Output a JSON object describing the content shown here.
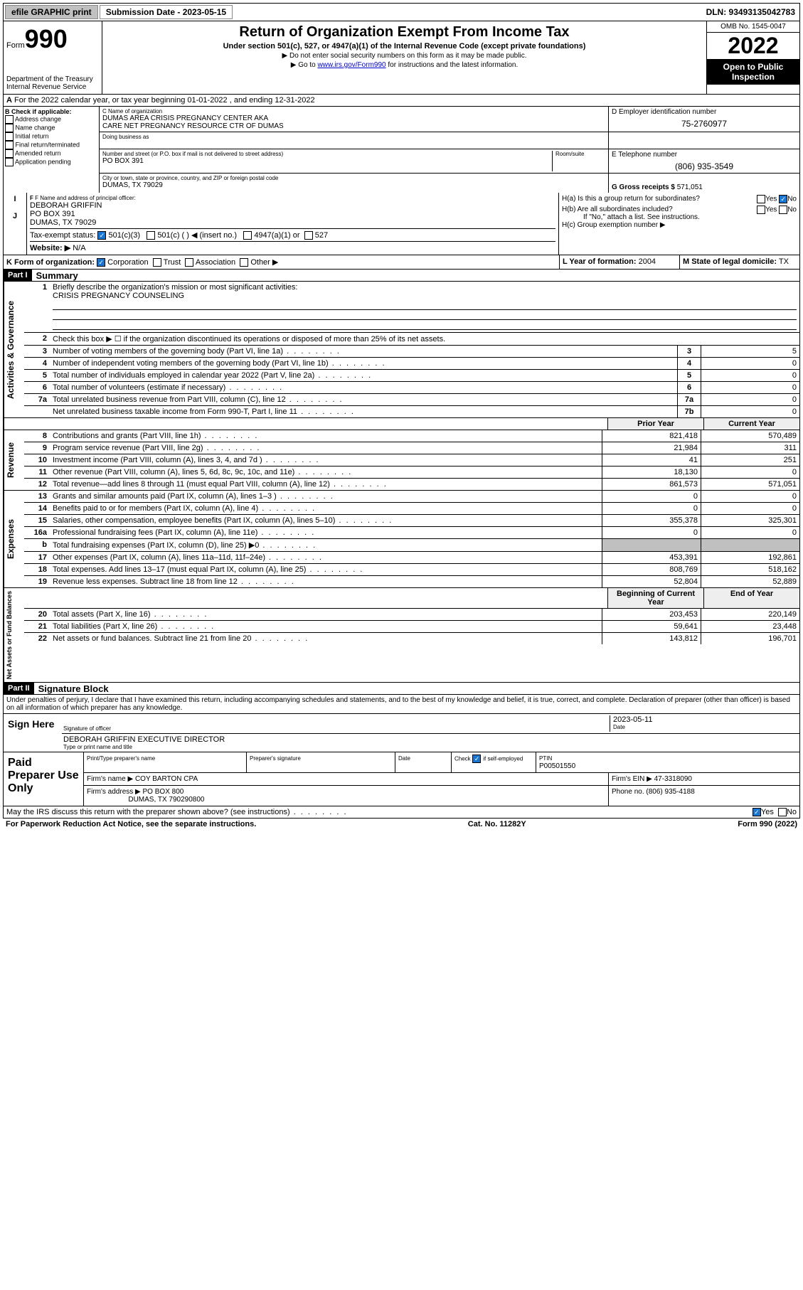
{
  "topbar": {
    "efile": "efile GRAPHIC print",
    "sub_label": "Submission Date - 2023-05-15",
    "dln": "DLN: 93493135042783"
  },
  "header": {
    "form_word": "Form",
    "form_num": "990",
    "dept": "Department of the Treasury",
    "irs": "Internal Revenue Service",
    "title": "Return of Organization Exempt From Income Tax",
    "sub": "Under section 501(c), 527, or 4947(a)(1) of the Internal Revenue Code (except private foundations)",
    "note1": "Do not enter social security numbers on this form as it may be made public.",
    "note2_pre": "Go to ",
    "note2_link": "www.irs.gov/Form990",
    "note2_post": " for instructions and the latest information.",
    "omb": "OMB No. 1545-0047",
    "year": "2022",
    "open": "Open to Public Inspection"
  },
  "rowA": "For the 2022 calendar year, or tax year beginning 01-01-2022    , and ending 12-31-2022",
  "boxB": {
    "title": "B Check if applicable:",
    "opts": [
      "Address change",
      "Name change",
      "Initial return",
      "Final return/terminated",
      "Amended return",
      "Application pending"
    ]
  },
  "boxC": {
    "label": "C Name of organization",
    "name1": "DUMAS AREA CRISIS PREGNANCY CENTER AKA",
    "name2": "CARE NET PREGNANCY RESOURCE CTR OF DUMAS",
    "dba": "Doing business as",
    "addr_label": "Number and street (or P.O. box if mail is not delivered to street address)",
    "addr": "PO BOX 391",
    "room": "Room/suite",
    "city_label": "City or town, state or province, country, and ZIP or foreign postal code",
    "city": "DUMAS, TX   79029"
  },
  "boxD": {
    "label": "D Employer identification number",
    "val": "75-2760977"
  },
  "boxE": {
    "label": "E Telephone number",
    "val": "(806) 935-3549"
  },
  "boxG": {
    "label": "G Gross receipts $",
    "val": "571,051"
  },
  "boxF": {
    "label": "F Name and address of principal officer:",
    "l1": "DEBORAH GRIFFIN",
    "l2": "PO BOX 391",
    "l3": "DUMAS, TX  79029"
  },
  "boxH": {
    "a": "H(a)  Is this a group return for subordinates?",
    "b": "H(b)  Are all subordinates included?",
    "note": "If \"No,\" attach a list. See instructions.",
    "c": "H(c)  Group exemption number ▶",
    "yes": "Yes",
    "no": "No"
  },
  "rowI": {
    "label": "Tax-exempt status:",
    "o1": "501(c)(3)",
    "o2": "501(c) (   ) ◀ (insert no.)",
    "o3": "4947(a)(1) or",
    "o4": "527"
  },
  "rowJ": {
    "label": "Website: ▶",
    "val": "N/A"
  },
  "rowK": {
    "label": "K Form of organization:",
    "o1": "Corporation",
    "o2": "Trust",
    "o3": "Association",
    "o4": "Other ▶"
  },
  "rowL": {
    "label": "L Year of formation:",
    "val": "2004"
  },
  "rowM": {
    "label": "M State of legal domicile:",
    "val": "TX"
  },
  "part1": {
    "hdr": "Part I",
    "title": "Summary"
  },
  "summary": {
    "q1": "Briefly describe the organization's mission or most significant activities:",
    "mission": "CRISIS PREGNANCY COUNSELING",
    "q2": "Check this box ▶ ☐  if the organization discontinued its operations or disposed of more than 25% of its net assets.",
    "rows": [
      {
        "n": "3",
        "d": "Number of voting members of the governing body (Part VI, line 1a)",
        "box": "3",
        "v": "5"
      },
      {
        "n": "4",
        "d": "Number of independent voting members of the governing body (Part VI, line 1b)",
        "box": "4",
        "v": "0"
      },
      {
        "n": "5",
        "d": "Total number of individuals employed in calendar year 2022 (Part V, line 2a)",
        "box": "5",
        "v": "0"
      },
      {
        "n": "6",
        "d": "Total number of volunteers (estimate if necessary)",
        "box": "6",
        "v": "0"
      },
      {
        "n": "7a",
        "d": "Total unrelated business revenue from Part VIII, column (C), line 12",
        "box": "7a",
        "v": "0"
      },
      {
        "n": "",
        "d": "Net unrelated business taxable income from Form 990-T, Part I, line 11",
        "box": "7b",
        "v": "0"
      }
    ]
  },
  "cols": {
    "prior": "Prior Year",
    "current": "Current Year",
    "begin": "Beginning of Current Year",
    "end": "End of Year"
  },
  "revenue": [
    {
      "n": "8",
      "d": "Contributions and grants (Part VIII, line 1h)",
      "p": "821,418",
      "c": "570,489"
    },
    {
      "n": "9",
      "d": "Program service revenue (Part VIII, line 2g)",
      "p": "21,984",
      "c": "311"
    },
    {
      "n": "10",
      "d": "Investment income (Part VIII, column (A), lines 3, 4, and 7d )",
      "p": "41",
      "c": "251"
    },
    {
      "n": "11",
      "d": "Other revenue (Part VIII, column (A), lines 5, 6d, 8c, 9c, 10c, and 11e)",
      "p": "18,130",
      "c": "0"
    },
    {
      "n": "12",
      "d": "Total revenue—add lines 8 through 11 (must equal Part VIII, column (A), line 12)",
      "p": "861,573",
      "c": "571,051"
    }
  ],
  "expenses": [
    {
      "n": "13",
      "d": "Grants and similar amounts paid (Part IX, column (A), lines 1–3 )",
      "p": "0",
      "c": "0"
    },
    {
      "n": "14",
      "d": "Benefits paid to or for members (Part IX, column (A), line 4)",
      "p": "0",
      "c": "0"
    },
    {
      "n": "15",
      "d": "Salaries, other compensation, employee benefits (Part IX, column (A), lines 5–10)",
      "p": "355,378",
      "c": "325,301"
    },
    {
      "n": "16a",
      "d": "Professional fundraising fees (Part IX, column (A), line 11e)",
      "p": "0",
      "c": "0"
    },
    {
      "n": "b",
      "d": "Total fundraising expenses (Part IX, column (D), line 25) ▶0",
      "p": "",
      "c": "",
      "gray": true
    },
    {
      "n": "17",
      "d": "Other expenses (Part IX, column (A), lines 11a–11d, 11f–24e)",
      "p": "453,391",
      "c": "192,861"
    },
    {
      "n": "18",
      "d": "Total expenses. Add lines 13–17 (must equal Part IX, column (A), line 25)",
      "p": "808,769",
      "c": "518,162"
    },
    {
      "n": "19",
      "d": "Revenue less expenses. Subtract line 18 from line 12",
      "p": "52,804",
      "c": "52,889"
    }
  ],
  "netassets": [
    {
      "n": "20",
      "d": "Total assets (Part X, line 16)",
      "p": "203,453",
      "c": "220,149"
    },
    {
      "n": "21",
      "d": "Total liabilities (Part X, line 26)",
      "p": "59,641",
      "c": "23,448"
    },
    {
      "n": "22",
      "d": "Net assets or fund balances. Subtract line 21 from line 20",
      "p": "143,812",
      "c": "196,701"
    }
  ],
  "part2": {
    "hdr": "Part II",
    "title": "Signature Block"
  },
  "sig": {
    "decl": "Under penalties of perjury, I declare that I have examined this return, including accompanying schedules and statements, and to the best of my knowledge and belief, it is true, correct, and complete. Declaration of preparer (other than officer) is based on all information of which preparer has any knowledge.",
    "here": "Sign Here",
    "officer": "Signature of officer",
    "date_lbl": "Date",
    "date": "2023-05-11",
    "name": "DEBORAH GRIFFIN  EXECUTIVE DIRECTOR",
    "name_lbl": "Type or print name and title"
  },
  "prep": {
    "label": "Paid Preparer Use Only",
    "col1": "Print/Type preparer's name",
    "col2": "Preparer's signature",
    "col3": "Date",
    "col4a": "Check",
    "col4b": "if self-employed",
    "ptin_lbl": "PTIN",
    "ptin": "P00501550",
    "firm_lbl": "Firm's name   ▶",
    "firm": "COY BARTON CPA",
    "ein_lbl": "Firm's EIN ▶",
    "ein": "47-3318090",
    "addr_lbl": "Firm's address ▶",
    "addr1": "PO BOX 800",
    "addr2": "DUMAS, TX  790290800",
    "phone_lbl": "Phone no.",
    "phone": "(806) 935-4188"
  },
  "footer": {
    "discuss": "May the IRS discuss this return with the preparer shown above? (see instructions)",
    "pra": "For Paperwork Reduction Act Notice, see the separate instructions.",
    "cat": "Cat. No. 11282Y",
    "form": "Form 990 (2022)"
  },
  "side": {
    "gov": "Activities & Governance",
    "rev": "Revenue",
    "exp": "Expenses",
    "net": "Net Assets or Fund Balances"
  }
}
